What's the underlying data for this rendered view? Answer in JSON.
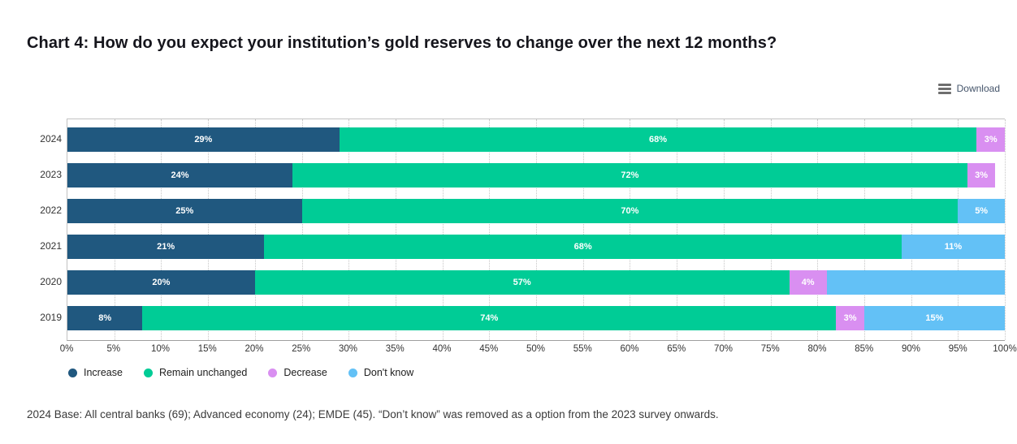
{
  "header": {
    "title": "Chart 4: How do you expect your institution’s gold reserves to change over the next 12 months?"
  },
  "toolbar": {
    "download_label": "Download",
    "download_icon": "hamburger-menu-icon"
  },
  "chart_data": {
    "type": "bar",
    "orientation": "horizontal_stacked",
    "stack_unit": "percent",
    "categories": [
      "2024",
      "2023",
      "2022",
      "2021",
      "2020",
      "2019"
    ],
    "series": [
      {
        "name": "Increase",
        "color": "#20587f",
        "values": [
          29,
          24,
          25,
          21,
          20,
          8
        ],
        "labels": [
          "29%",
          "24%",
          "25%",
          "21%",
          "20%",
          "8%"
        ]
      },
      {
        "name": "Remain unchanged",
        "color": "#00cc96",
        "values": [
          68,
          72,
          70,
          68,
          57,
          74
        ],
        "labels": [
          "68%",
          "72%",
          "70%",
          "68%",
          "57%",
          "74%"
        ]
      },
      {
        "name": "Decrease",
        "color": "#d98ff1",
        "values": [
          3,
          3,
          0,
          0,
          4,
          3
        ],
        "labels": [
          "3%",
          "3%",
          "",
          "",
          "4%",
          "3%"
        ]
      },
      {
        "name": "Don't know",
        "color": "#63c1f6",
        "values": [
          0,
          0,
          5,
          11,
          19,
          15
        ],
        "labels": [
          "",
          "",
          "5%",
          "11%",
          "",
          "15%"
        ]
      }
    ],
    "xlim": [
      0,
      100
    ],
    "x_tick_step": 5,
    "x_tick_labels": [
      "0%",
      "5%",
      "10%",
      "15%",
      "20%",
      "25%",
      "30%",
      "35%",
      "40%",
      "45%",
      "50%",
      "55%",
      "60%",
      "65%",
      "70%",
      "75%",
      "80%",
      "85%",
      "90%",
      "95%",
      "100%"
    ],
    "grid": "vertical_dotted",
    "legend_position": "bottom_left",
    "legend": [
      "Increase",
      "Remain unchanged",
      "Decrease",
      "Don't know"
    ]
  },
  "footnote": {
    "text": "2024 Base: All central banks (69); Advanced economy (24); EMDE (45). “Don’t know” was removed as a option from the 2023 survey onwards."
  }
}
